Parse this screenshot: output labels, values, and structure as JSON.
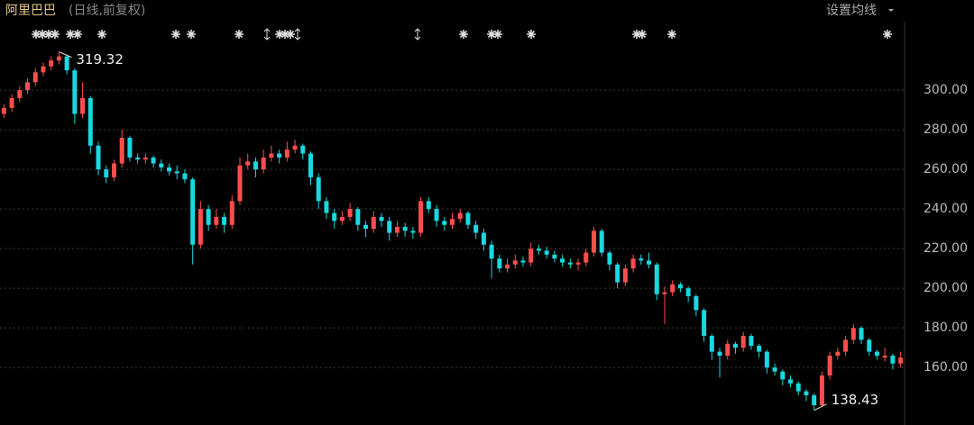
{
  "chart_data": {
    "type": "candlestick",
    "title": "阿里巴巴",
    "subtitle": "(日线,前复权)",
    "menu": "设置均线",
    "max_label": "319.32",
    "min_label": "138.43",
    "up_color": "#ff4d4d",
    "down_color": "#19d8e0",
    "ylim": [
      131,
      345.5
    ],
    "yticks": [
      {
        "value": 160,
        "label": "160.00"
      },
      {
        "value": 180,
        "label": "180.00"
      },
      {
        "value": 200,
        "label": "200.00"
      },
      {
        "value": 220,
        "label": "220.00"
      },
      {
        "value": 240,
        "label": "240.00"
      },
      {
        "value": 260,
        "label": "260.00"
      },
      {
        "value": 280,
        "label": "280.00"
      },
      {
        "value": 300,
        "label": "300.00"
      }
    ],
    "grid": true,
    "candles": [
      [
        288,
        293,
        286,
        291
      ],
      [
        291,
        298,
        289,
        296
      ],
      [
        296,
        302,
        294,
        300
      ],
      [
        300,
        306,
        298,
        304
      ],
      [
        304,
        311,
        302,
        309
      ],
      [
        309,
        314,
        307,
        312
      ],
      [
        312,
        317,
        310,
        315
      ],
      [
        315,
        319.32,
        313,
        317
      ],
      [
        317,
        318,
        308,
        310
      ],
      [
        310,
        311,
        283,
        288
      ],
      [
        288,
        304,
        286,
        296
      ],
      [
        296,
        297,
        268,
        272
      ],
      [
        272,
        274,
        257,
        260
      ],
      [
        260,
        262,
        253,
        256
      ],
      [
        256,
        265,
        254,
        263
      ],
      [
        263,
        280,
        261,
        276
      ],
      [
        276,
        277,
        264,
        266
      ],
      [
        266,
        268,
        263,
        265
      ],
      [
        265,
        268,
        263,
        266
      ],
      [
        266,
        267,
        261,
        263
      ],
      [
        263,
        265,
        259,
        261
      ],
      [
        261,
        263,
        257,
        259
      ],
      [
        259,
        262,
        255,
        258
      ],
      [
        258,
        260,
        253,
        255
      ],
      [
        255,
        256,
        212,
        222
      ],
      [
        222,
        244,
        220,
        240
      ],
      [
        240,
        242,
        229,
        232
      ],
      [
        232,
        240,
        230,
        236
      ],
      [
        236,
        238,
        228,
        232
      ],
      [
        232,
        247,
        230,
        244
      ],
      [
        244,
        266,
        242,
        262
      ],
      [
        262,
        268,
        260,
        264
      ],
      [
        264,
        266,
        256,
        260
      ],
      [
        260,
        270,
        258,
        266
      ],
      [
        266,
        272,
        264,
        268
      ],
      [
        268,
        270,
        263,
        266
      ],
      [
        266,
        274,
        264,
        270
      ],
      [
        270,
        275,
        268,
        272
      ],
      [
        272,
        273,
        265,
        268
      ],
      [
        268,
        269,
        252,
        256
      ],
      [
        256,
        258,
        240,
        244
      ],
      [
        244,
        246,
        235,
        238
      ],
      [
        238,
        240,
        230,
        234
      ],
      [
        234,
        239,
        232,
        236
      ],
      [
        236,
        243,
        234,
        240
      ],
      [
        240,
        241,
        229,
        232
      ],
      [
        232,
        234,
        226,
        230
      ],
      [
        230,
        239,
        228,
        236
      ],
      [
        236,
        238,
        231,
        234
      ],
      [
        234,
        236,
        224,
        228
      ],
      [
        228,
        234,
        226,
        231
      ],
      [
        231,
        233,
        226,
        229
      ],
      [
        229,
        231,
        225,
        228
      ],
      [
        228,
        246,
        226,
        244
      ],
      [
        244,
        246,
        238,
        240
      ],
      [
        240,
        242,
        231,
        234
      ],
      [
        234,
        236,
        229,
        232
      ],
      [
        232,
        238,
        230,
        235
      ],
      [
        235,
        240,
        233,
        238
      ],
      [
        238,
        239,
        230,
        232
      ],
      [
        232,
        234,
        225,
        228
      ],
      [
        228,
        230,
        219,
        222
      ],
      [
        222,
        224,
        205,
        215
      ],
      [
        215,
        217,
        208,
        210
      ],
      [
        210,
        215,
        208,
        212
      ],
      [
        212,
        217,
        210,
        214
      ],
      [
        214,
        216,
        211,
        213
      ],
      [
        213,
        223,
        211,
        220
      ],
      [
        220,
        222,
        217,
        219
      ],
      [
        219,
        221,
        215,
        217
      ],
      [
        217,
        219,
        213,
        215
      ],
      [
        215,
        217,
        211,
        213
      ],
      [
        213,
        215,
        210,
        212
      ],
      [
        212,
        215,
        209,
        213
      ],
      [
        213,
        220,
        211,
        218
      ],
      [
        218,
        231,
        216,
        229
      ],
      [
        229,
        230,
        216,
        218
      ],
      [
        218,
        219,
        209,
        212
      ],
      [
        212,
        213,
        200,
        203
      ],
      [
        203,
        212,
        201,
        210
      ],
      [
        210,
        217,
        208,
        215
      ],
      [
        215,
        217,
        212,
        214
      ],
      [
        214,
        218,
        210,
        212
      ],
      [
        212,
        213,
        194,
        197
      ],
      [
        197,
        201,
        182,
        198
      ],
      [
        198,
        204,
        196,
        202
      ],
      [
        202,
        203,
        198,
        200
      ],
      [
        200,
        201,
        193,
        196
      ],
      [
        196,
        197,
        186,
        189
      ],
      [
        189,
        190,
        173,
        176
      ],
      [
        176,
        177,
        164,
        168
      ],
      [
        168,
        170,
        155,
        166
      ],
      [
        166,
        174,
        164,
        172
      ],
      [
        172,
        173,
        167,
        170
      ],
      [
        170,
        178,
        168,
        176
      ],
      [
        176,
        177,
        169,
        171
      ],
      [
        171,
        172,
        165,
        168
      ],
      [
        168,
        169,
        157,
        160
      ],
      [
        160,
        162,
        156,
        158
      ],
      [
        158,
        159,
        151,
        154
      ],
      [
        154,
        156,
        150,
        152
      ],
      [
        152,
        153,
        146,
        148
      ],
      [
        148,
        149,
        143,
        146
      ],
      [
        146,
        147,
        138.43,
        141
      ],
      [
        141,
        158,
        140,
        156
      ],
      [
        156,
        168,
        154,
        166
      ],
      [
        166,
        170,
        164,
        168
      ],
      [
        168,
        176,
        166,
        174
      ],
      [
        174,
        182,
        172,
        180
      ],
      [
        180,
        181,
        172,
        174
      ],
      [
        174,
        175,
        166,
        168
      ],
      [
        168,
        169,
        164,
        166
      ],
      [
        165,
        170,
        163,
        166
      ],
      [
        166,
        167,
        159,
        162
      ],
      [
        162,
        168,
        160,
        165
      ]
    ]
  }
}
